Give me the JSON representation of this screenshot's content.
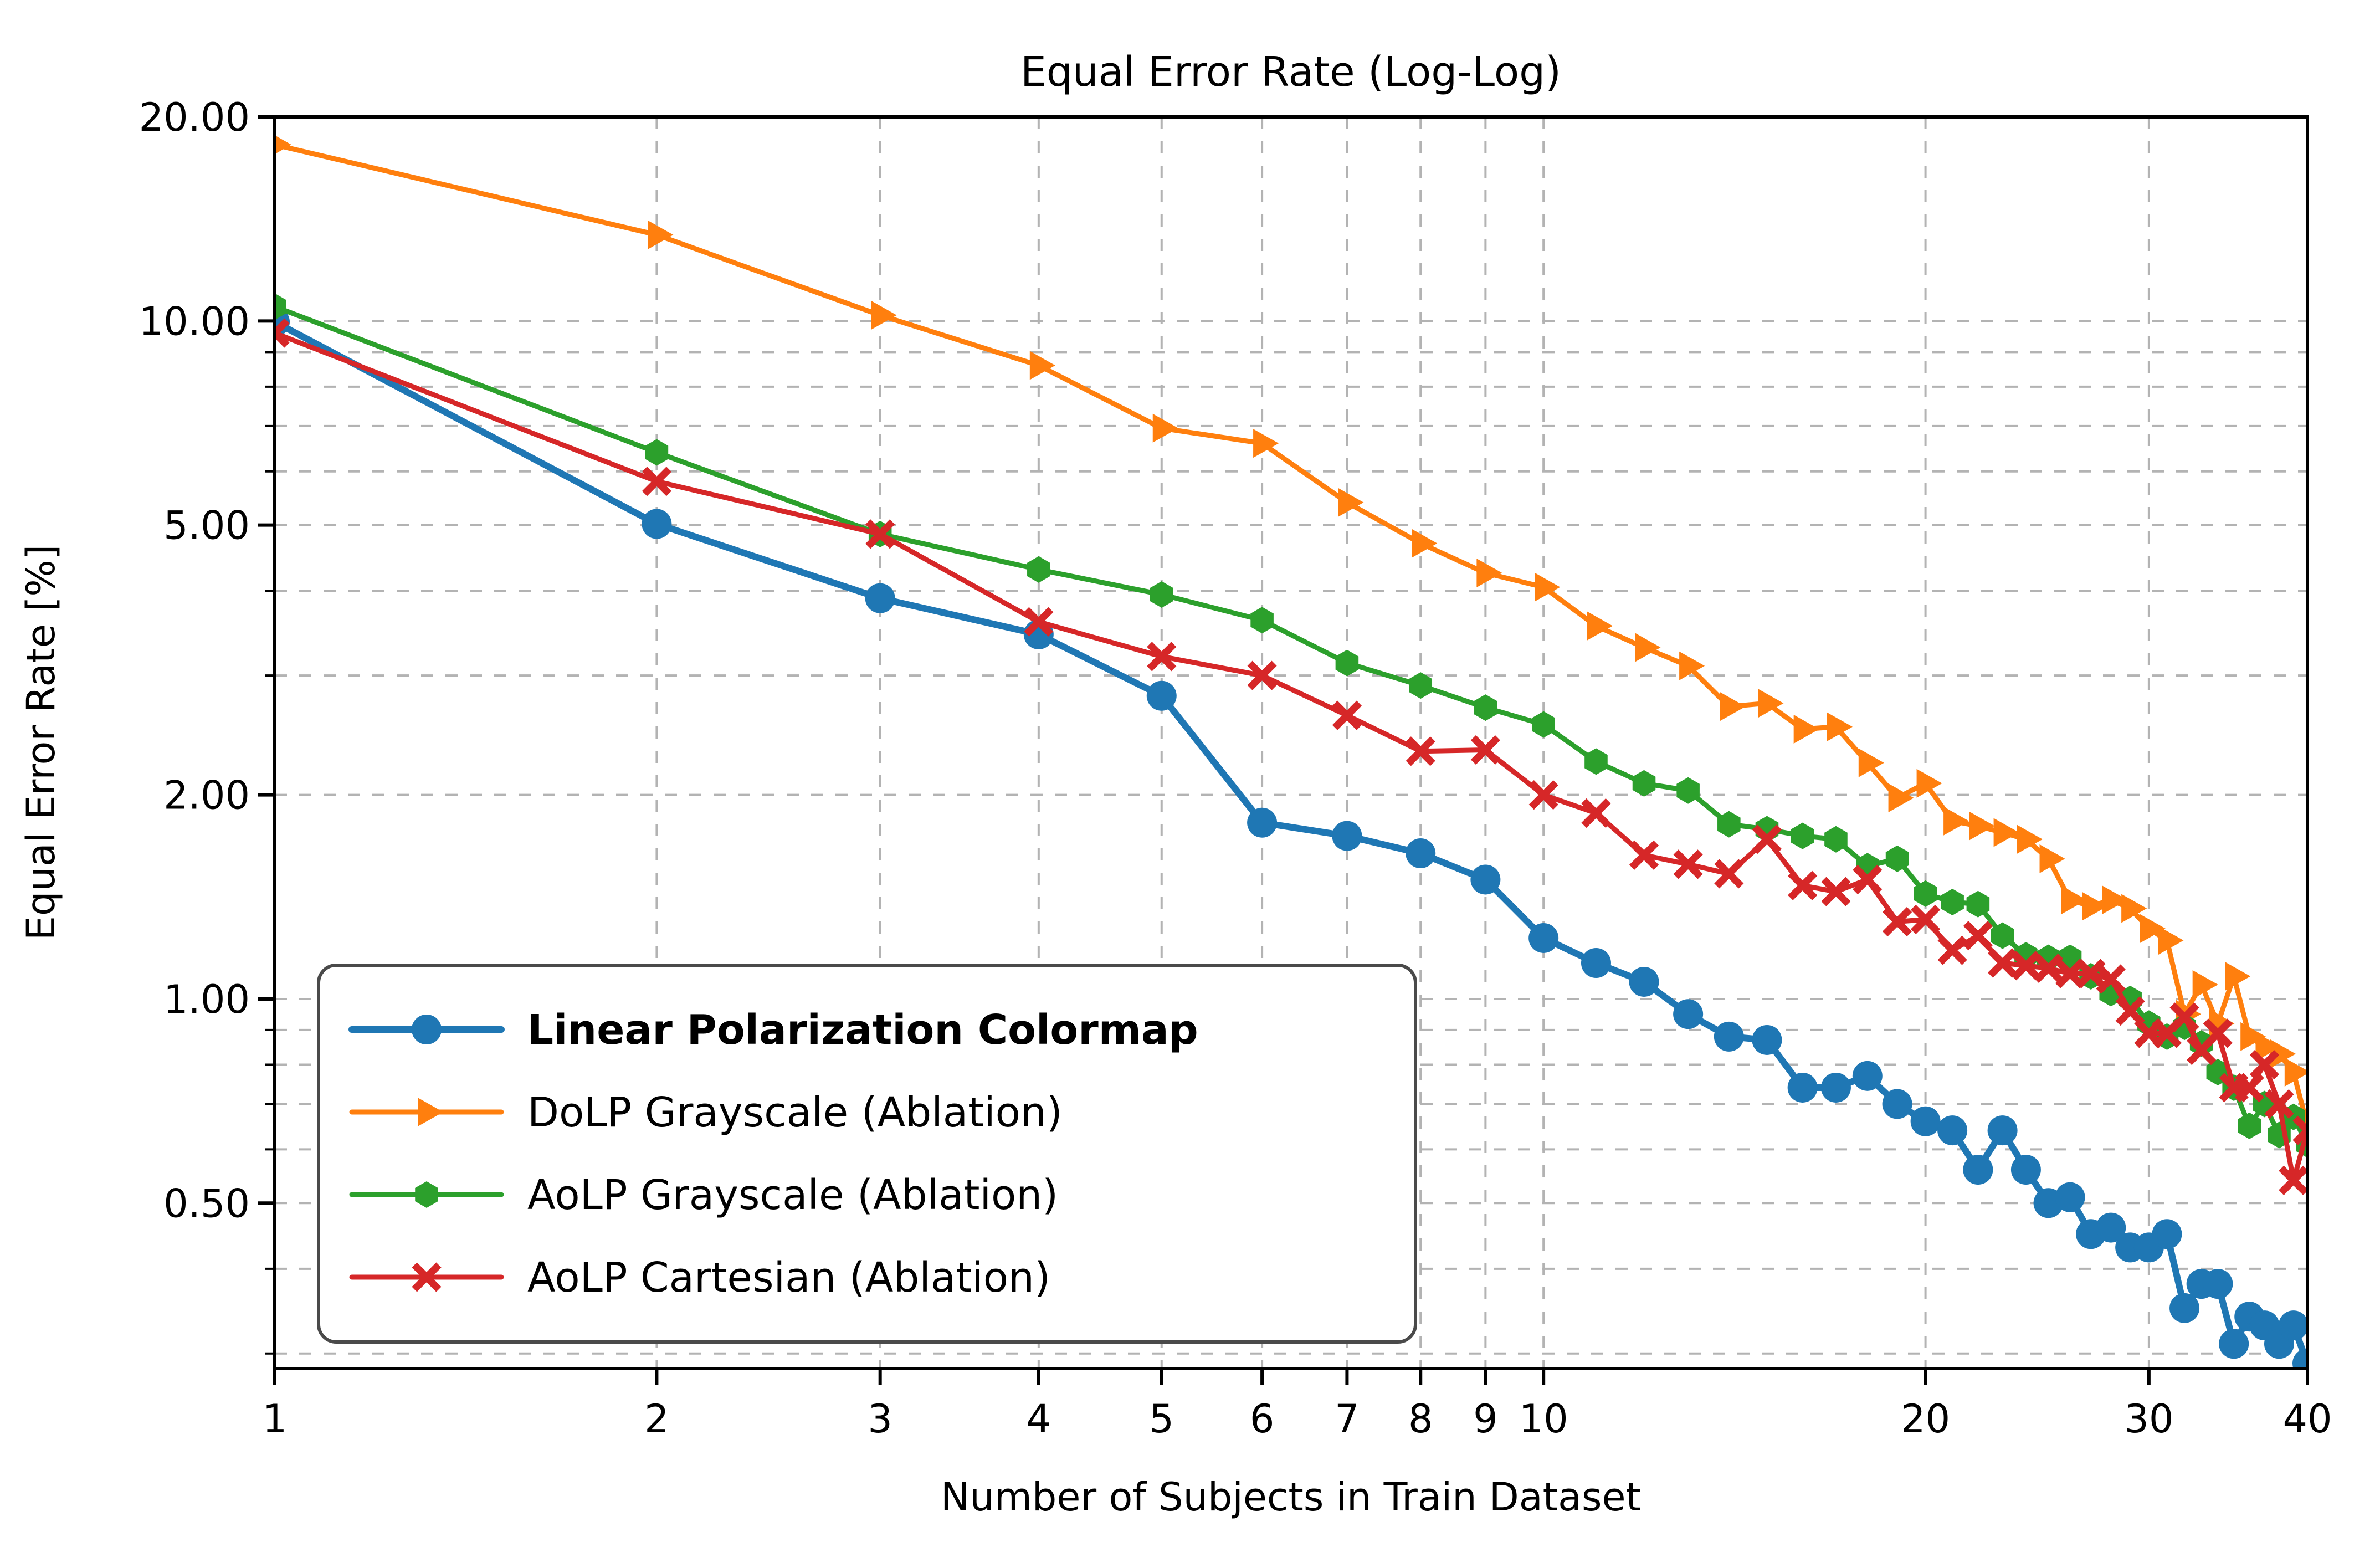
{
  "chart_data": {
    "type": "line",
    "title": "Equal Error Rate (Log-Log)",
    "xlabel": "Number of Subjects in Train Dataset",
    "ylabel": "Equal Error Rate [%]",
    "x_scale": "log",
    "y_scale": "log",
    "xlim": [
      1,
      40
    ],
    "ylim": [
      0.285,
      20
    ],
    "grid": true,
    "grid_color": "#b3b3b3",
    "legend_position": "lower-left",
    "x": [
      1,
      2,
      3,
      4,
      5,
      6,
      7,
      8,
      9,
      10,
      11,
      12,
      13,
      14,
      15,
      16,
      17,
      18,
      19,
      20,
      21,
      22,
      23,
      24,
      25,
      26,
      27,
      28,
      29,
      30,
      31,
      32,
      33,
      34,
      35,
      36,
      37,
      38,
      39,
      40
    ],
    "series": [
      {
        "name": "Linear Polarization Colormap",
        "color": "#1f77b4",
        "marker": "circle",
        "bold_in_legend": true,
        "values": [
          9.97,
          5.02,
          3.9,
          3.45,
          2.8,
          1.82,
          1.74,
          1.64,
          1.5,
          1.23,
          1.13,
          1.06,
          0.95,
          0.88,
          0.87,
          0.74,
          0.74,
          0.77,
          0.7,
          0.66,
          0.64,
          0.56,
          0.64,
          0.56,
          0.5,
          0.51,
          0.45,
          0.46,
          0.43,
          0.43,
          0.45,
          0.35,
          0.38,
          0.38,
          0.31,
          0.34,
          0.33,
          0.31,
          0.33,
          0.29
        ]
      },
      {
        "name": "DoLP Grayscale (Ablation)",
        "color": "#ff7f0e",
        "marker": "triangle-right",
        "bold_in_legend": false,
        "values": [
          18.2,
          13.4,
          10.2,
          8.6,
          6.95,
          6.6,
          5.4,
          4.7,
          4.25,
          4.05,
          3.55,
          3.3,
          3.1,
          2.7,
          2.73,
          2.5,
          2.52,
          2.23,
          1.98,
          2.08,
          1.83,
          1.8,
          1.76,
          1.72,
          1.61,
          1.4,
          1.37,
          1.4,
          1.36,
          1.27,
          1.22,
          0.95,
          1.05,
          0.92,
          1.08,
          0.88,
          0.85,
          0.83,
          0.78,
          0.65
        ]
      },
      {
        "name": "AoLP Grayscale (Ablation)",
        "color": "#2ca02c",
        "marker": "hexagon",
        "bold_in_legend": false,
        "values": [
          10.5,
          6.4,
          4.85,
          4.3,
          3.95,
          3.62,
          3.13,
          2.9,
          2.69,
          2.54,
          2.24,
          2.08,
          2.03,
          1.81,
          1.78,
          1.74,
          1.72,
          1.57,
          1.61,
          1.43,
          1.39,
          1.38,
          1.24,
          1.16,
          1.15,
          1.15,
          1.08,
          1.02,
          1.0,
          0.92,
          0.88,
          0.91,
          0.86,
          0.78,
          0.74,
          0.65,
          0.7,
          0.63,
          0.67,
          0.61
        ]
      },
      {
        "name": "AoLP Cartesian (Ablation)",
        "color": "#d62728",
        "marker": "x",
        "bold_in_legend": false,
        "values": [
          9.6,
          5.8,
          4.85,
          3.6,
          3.2,
          3.0,
          2.62,
          2.32,
          2.33,
          2.0,
          1.88,
          1.63,
          1.58,
          1.53,
          1.72,
          1.47,
          1.44,
          1.5,
          1.3,
          1.31,
          1.18,
          1.24,
          1.13,
          1.12,
          1.11,
          1.09,
          1.09,
          1.07,
          0.96,
          0.89,
          0.89,
          0.94,
          0.84,
          0.89,
          0.74,
          0.74,
          0.8,
          0.7,
          0.54,
          0.64
        ]
      }
    ],
    "x_ticks": {
      "values": [
        1,
        2,
        3,
        4,
        5,
        6,
        7,
        8,
        9,
        10,
        20,
        30,
        40
      ],
      "labels": [
        "1",
        "2",
        "3",
        "4",
        "5",
        "6",
        "7",
        "8",
        "9",
        "10",
        "20",
        "30",
        "40"
      ]
    },
    "y_ticks": {
      "values": [
        20,
        10,
        5,
        2,
        1,
        0.5
      ],
      "labels": [
        "20.00",
        "10.00",
        "5.00",
        "2.00",
        "1.00",
        "0.50"
      ]
    },
    "y_minor_ticks": [
      9,
      8,
      7,
      6,
      4,
      3,
      0.9,
      0.8,
      0.7,
      0.6,
      0.4,
      0.3
    ],
    "x_gridlines": [
      2,
      3,
      4,
      5,
      6,
      7,
      8,
      9,
      10,
      20,
      30,
      40
    ],
    "y_gridlines": [
      10,
      9,
      8,
      7,
      6,
      5,
      4,
      3,
      2,
      1,
      0.9,
      0.8,
      0.7,
      0.6,
      0.5,
      0.4,
      0.3
    ]
  }
}
